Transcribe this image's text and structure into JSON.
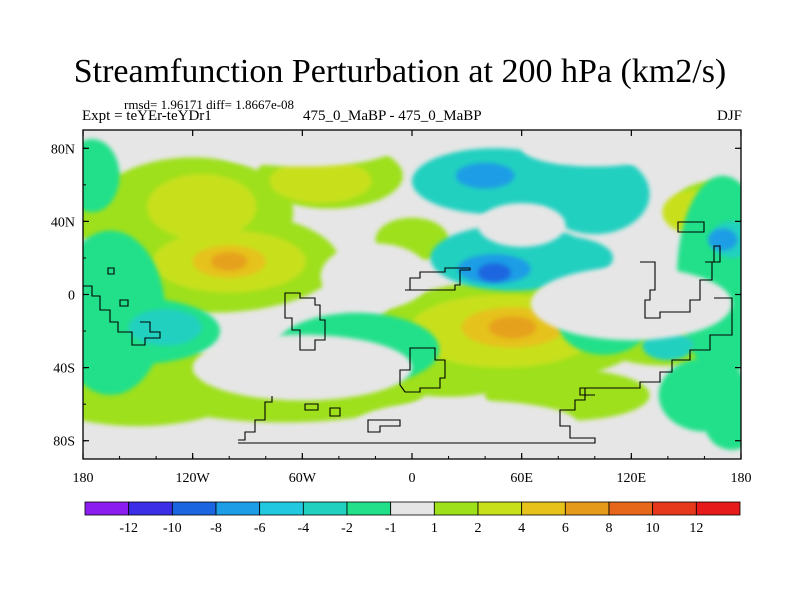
{
  "header": {
    "title": "Streamfunction Perturbation at 200 hPa (km2/s)",
    "stats": "rmsd= 1.96171 diff= 1.8667e-08",
    "expt": "Expt = teYEr-teYDr1",
    "center_label": "475_0_MaBP - 475_0_MaBP",
    "season": "DJF"
  },
  "chart_data": {
    "type": "heatmap",
    "title": "Streamfunction Perturbation at 200 hPa (km2/s)",
    "x_ticks": [
      {
        "value": -180,
        "label": "180"
      },
      {
        "value": -120,
        "label": "120W"
      },
      {
        "value": -60,
        "label": "60W"
      },
      {
        "value": 0,
        "label": "0"
      },
      {
        "value": 60,
        "label": "60E"
      },
      {
        "value": 120,
        "label": "120E"
      },
      {
        "value": 180,
        "label": "180"
      }
    ],
    "y_ticks": [
      {
        "value": 80,
        "label": "80N"
      },
      {
        "value": 40,
        "label": "40N"
      },
      {
        "value": 0,
        "label": "0"
      },
      {
        "value": -40,
        "label": "40S"
      },
      {
        "value": -80,
        "label": "80S"
      }
    ],
    "xlim": [
      -180,
      180
    ],
    "ylim": [
      -90,
      90
    ],
    "colorbar": {
      "labels": [
        "-12",
        "-10",
        "-8",
        "-6",
        "-4",
        "-2",
        "-1",
        "1",
        "2",
        "4",
        "6",
        "8",
        "10",
        "12"
      ],
      "colors": [
        "#8c1df0",
        "#3b2ee6",
        "#1b66e0",
        "#1c9de6",
        "#22c7e0",
        "#22d0c0",
        "#22e08a",
        "#e6e6e6",
        "#9ee01a",
        "#c8e01a",
        "#e6c21a",
        "#e69a1a",
        "#e6661a",
        "#e6381a",
        "#e61a1a"
      ]
    },
    "fields": [
      {
        "level": "1",
        "color": "#9ee01a",
        "blobs": [
          [
            -120,
            45,
            55,
            30
          ],
          [
            -110,
            18,
            70,
            28
          ],
          [
            -175,
            50,
            25,
            20
          ],
          [
            -150,
            -50,
            60,
            22
          ],
          [
            -70,
            -50,
            80,
            20
          ],
          [
            55,
            -20,
            75,
            28
          ],
          [
            20,
            -42,
            40,
            14
          ],
          [
            -45,
            65,
            40,
            18
          ],
          [
            0,
            30,
            20,
            12
          ],
          [
            85,
            -55,
            45,
            14
          ],
          [
            165,
            48,
            22,
            14
          ],
          [
            140,
            -25,
            40,
            14
          ]
        ]
      },
      {
        "level": "2",
        "color": "#c8e01a",
        "blobs": [
          [
            -115,
            48,
            30,
            18
          ],
          [
            -100,
            18,
            42,
            17
          ],
          [
            -50,
            62,
            28,
            12
          ],
          [
            50,
            -20,
            52,
            20
          ],
          [
            155,
            45,
            18,
            12
          ],
          [
            60,
            38,
            12,
            7
          ]
        ]
      },
      {
        "level": "4",
        "color": "#e6c21a",
        "blobs": [
          [
            -100,
            18,
            20,
            9
          ],
          [
            55,
            -18,
            28,
            11
          ],
          [
            168,
            45,
            10,
            6
          ],
          [
            60,
            38,
            8,
            5
          ]
        ]
      },
      {
        "level": "6",
        "color": "#e6a11a",
        "blobs": [
          [
            -100,
            18,
            10,
            5
          ],
          [
            55,
            -18,
            13,
            6
          ]
        ]
      },
      {
        "level": "-1",
        "color": "#22e08a",
        "blobs": [
          [
            -150,
            -20,
            45,
            18
          ],
          [
            -165,
            -10,
            30,
            45
          ],
          [
            -30,
            -30,
            45,
            20
          ],
          [
            170,
            10,
            25,
            55
          ],
          [
            160,
            -55,
            25,
            20
          ],
          [
            -175,
            65,
            15,
            20
          ],
          [
            175,
            -70,
            15,
            15
          ],
          [
            105,
            -15,
            25,
            18
          ]
        ]
      },
      {
        "level": "-2",
        "color": "#22d0c0",
        "blobs": [
          [
            45,
            62,
            45,
            18
          ],
          [
            55,
            20,
            45,
            18
          ],
          [
            100,
            55,
            30,
            22
          ],
          [
            80,
            20,
            30,
            12
          ],
          [
            -135,
            -18,
            20,
            10
          ],
          [
            140,
            -28,
            14,
            8
          ],
          [
            175,
            30,
            12,
            10
          ]
        ]
      },
      {
        "level": "-4",
        "color": "#1c9de6",
        "blobs": [
          [
            40,
            65,
            16,
            7
          ],
          [
            45,
            14,
            20,
            8
          ],
          [
            170,
            30,
            8,
            6
          ]
        ]
      },
      {
        "level": "-6",
        "color": "#1b66e0",
        "blobs": [
          [
            45,
            12,
            9,
            5
          ]
        ]
      },
      {
        "level": "0",
        "color": "#e6e6e6",
        "blobs": [
          [
            60,
            38,
            24,
            12
          ],
          [
            -60,
            -40,
            60,
            18
          ],
          [
            120,
            -5,
            55,
            20
          ],
          [
            30,
            -70,
            60,
            12
          ],
          [
            -20,
            10,
            30,
            18
          ],
          [
            100,
            80,
            40,
            10
          ],
          [
            -60,
            80,
            50,
            10
          ]
        ]
      }
    ]
  }
}
